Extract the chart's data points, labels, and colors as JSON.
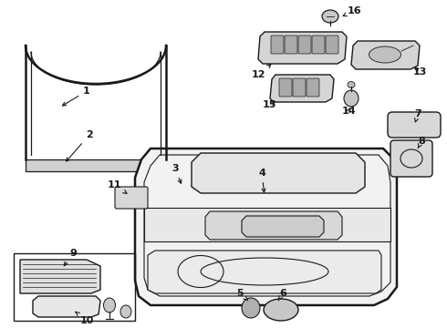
{
  "bg_color": "#ffffff",
  "line_color": "#1a1a1a",
  "lw": 1.0
}
